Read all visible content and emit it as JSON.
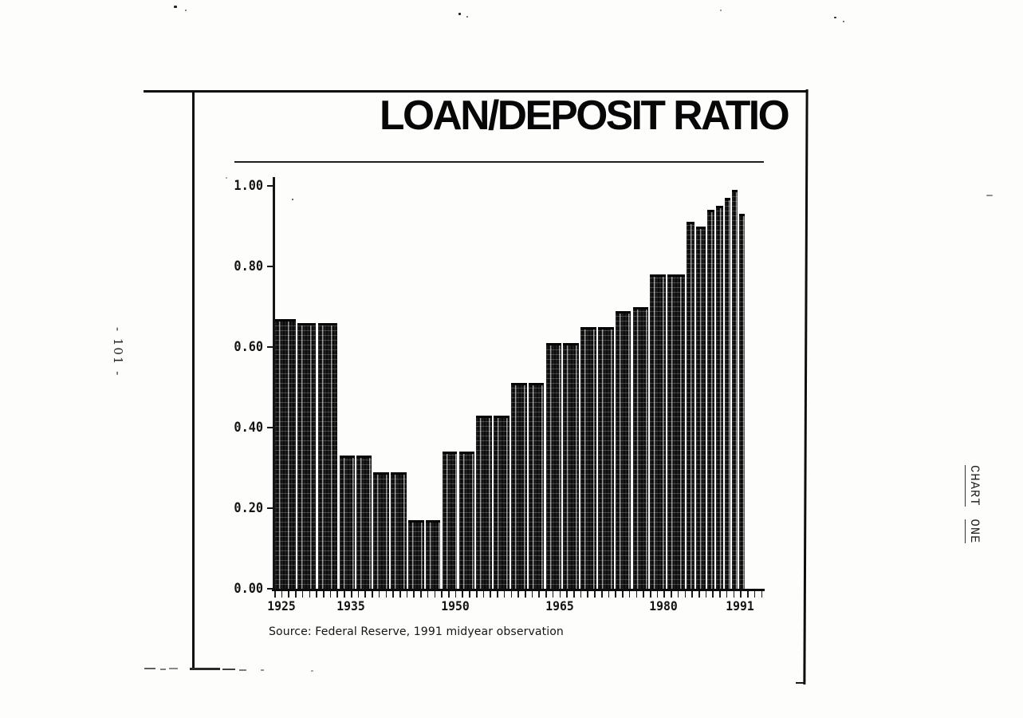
{
  "page": {
    "page_number": "- 101 -",
    "side_label": [
      "CHART",
      "ONE"
    ]
  },
  "figure": {
    "title": "LOAN/DEPOSIT RATIO",
    "source_note": "Source: Federal Reserve, 1991 midyear observation"
  },
  "chart_data": {
    "type": "bar",
    "title": "LOAN/DEPOSIT RATIO",
    "xlabel": "",
    "ylabel": "",
    "ylim": [
      0,
      1.0
    ],
    "x_range": [
      1924,
      1994.4
    ],
    "grid": false,
    "y_tick_labels": [
      "1.00",
      "0.80",
      "0.60",
      "0.40",
      "0.20",
      "0.00"
    ],
    "x_tick_labels": [
      "1925",
      "1935",
      "1950",
      "1965",
      "1980",
      "1991"
    ],
    "source": "Source: Federal Reserve, 1991 midyear observation",
    "bars": [
      {
        "from": 1924.0,
        "to": 1927.3,
        "value": 0.67
      },
      {
        "from": 1927.3,
        "to": 1930.2,
        "value": 0.66
      },
      {
        "from": 1930.2,
        "to": 1933.3,
        "value": 0.66
      },
      {
        "from": 1933.3,
        "to": 1935.8,
        "value": 0.33
      },
      {
        "from": 1935.8,
        "to": 1938.2,
        "value": 0.33
      },
      {
        "from": 1938.2,
        "to": 1940.7,
        "value": 0.29
      },
      {
        "from": 1940.7,
        "to": 1943.2,
        "value": 0.29
      },
      {
        "from": 1943.2,
        "to": 1945.7,
        "value": 0.17
      },
      {
        "from": 1945.7,
        "to": 1948.1,
        "value": 0.17
      },
      {
        "from": 1948.1,
        "to": 1950.5,
        "value": 0.34
      },
      {
        "from": 1950.5,
        "to": 1953.0,
        "value": 0.34
      },
      {
        "from": 1953.0,
        "to": 1955.5,
        "value": 0.43
      },
      {
        "from": 1955.5,
        "to": 1958.0,
        "value": 0.43
      },
      {
        "from": 1958.0,
        "to": 1960.5,
        "value": 0.51
      },
      {
        "from": 1960.5,
        "to": 1963.0,
        "value": 0.51
      },
      {
        "from": 1963.0,
        "to": 1965.5,
        "value": 0.61
      },
      {
        "from": 1965.5,
        "to": 1968.0,
        "value": 0.61
      },
      {
        "from": 1968.0,
        "to": 1970.5,
        "value": 0.65
      },
      {
        "from": 1970.5,
        "to": 1973.0,
        "value": 0.65
      },
      {
        "from": 1973.0,
        "to": 1975.5,
        "value": 0.69
      },
      {
        "from": 1975.5,
        "to": 1978.0,
        "value": 0.7
      },
      {
        "from": 1978.0,
        "to": 1980.5,
        "value": 0.78
      },
      {
        "from": 1980.5,
        "to": 1983.2,
        "value": 0.78
      },
      {
        "from": 1983.2,
        "to": 1984.6,
        "value": 0.91
      },
      {
        "from": 1984.6,
        "to": 1986.2,
        "value": 0.9
      },
      {
        "from": 1986.2,
        "to": 1987.5,
        "value": 0.94
      },
      {
        "from": 1987.5,
        "to": 1988.7,
        "value": 0.95
      },
      {
        "from": 1988.7,
        "to": 1989.8,
        "value": 0.97
      },
      {
        "from": 1989.8,
        "to": 1990.8,
        "value": 0.99
      },
      {
        "from": 1990.8,
        "to": 1991.9,
        "value": 0.93
      }
    ]
  }
}
